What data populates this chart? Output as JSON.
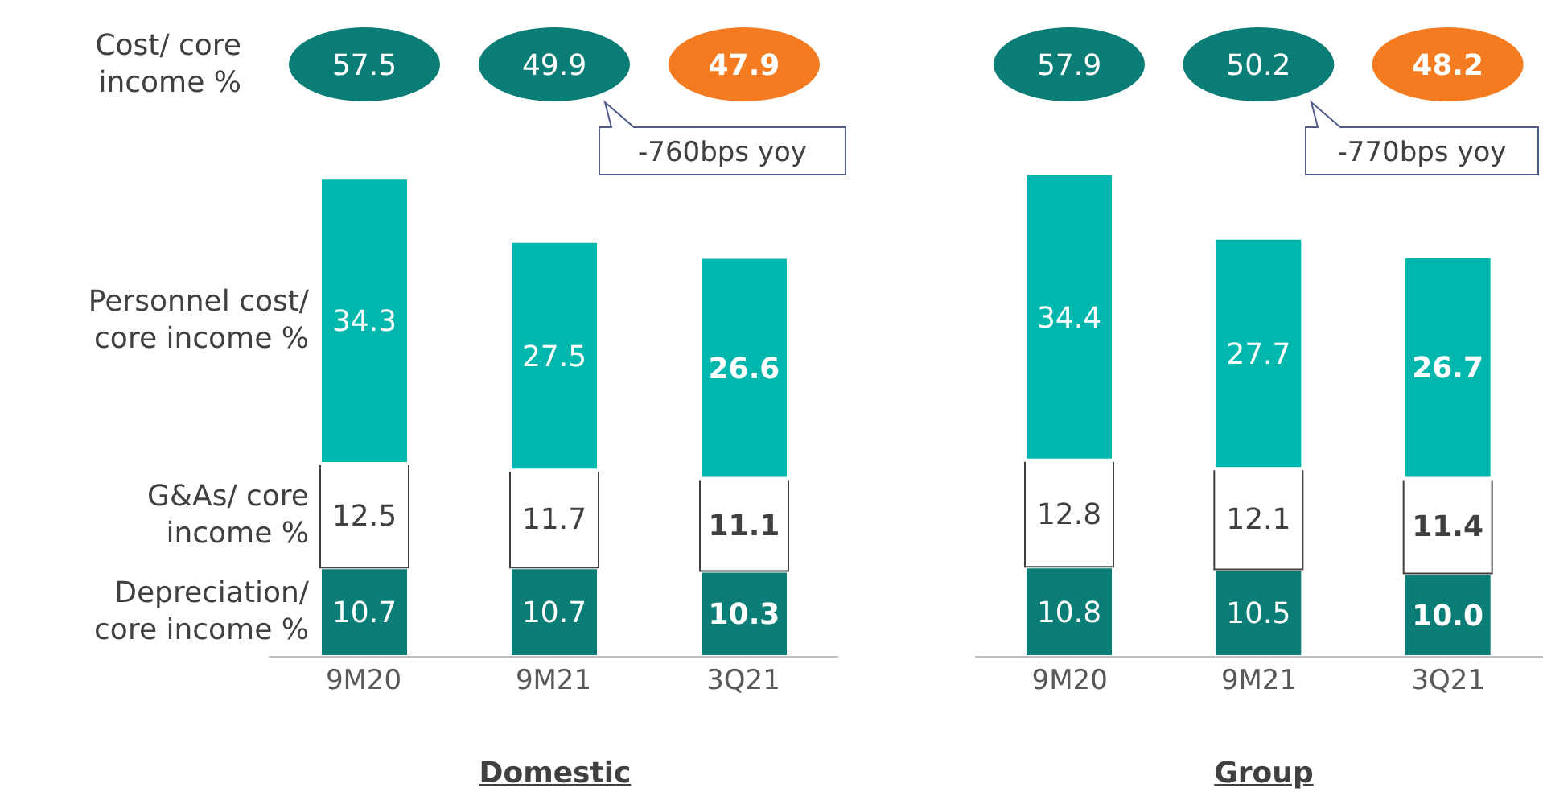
{
  "chart_data": [
    {
      "type": "bar",
      "stacked": true,
      "xlabel": "Domestic",
      "categories": [
        "9M20",
        "9M21",
        "3Q21"
      ],
      "tick_labels": "x",
      "data_labels": true,
      "annotations": [
        "Cost/  core income %",
        "57.5",
        "49.9",
        "47.9",
        "-760bps yoy"
      ],
      "series": [
        {
          "name": "Depreciation/ core income %",
          "color": "#0a7d76",
          "values": [
            10.7,
            10.7,
            10.3
          ]
        },
        {
          "name": "G&As/ core income %",
          "color": "#ffffff",
          "values": [
            12.5,
            11.7,
            11.1
          ]
        },
        {
          "name": "Personnel cost/ core income %",
          "color": "#00b7ae",
          "values": [
            34.3,
            27.5,
            26.6
          ]
        }
      ]
    },
    {
      "type": "bar",
      "stacked": true,
      "xlabel": "Group",
      "categories": [
        "9M20",
        "9M21",
        "3Q21"
      ],
      "tick_labels": "x",
      "data_labels": true,
      "annotations": [
        "57.9",
        "50.2",
        "48.2",
        "-770bps yoy"
      ],
      "series": [
        {
          "color": "#0a7d76",
          "values": [
            10.8,
            10.5,
            10.0
          ],
          "value_labels": [
            "10.8",
            "10.5",
            "10.0"
          ]
        },
        {
          "color": "#ffffff",
          "values": [
            12.8,
            12.1,
            11.4
          ]
        },
        {
          "color": "#00b7ae",
          "values": [
            34.4,
            27.7,
            26.7
          ]
        }
      ]
    }
  ]
}
